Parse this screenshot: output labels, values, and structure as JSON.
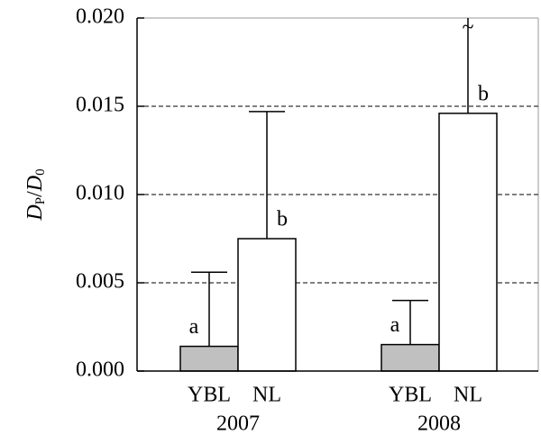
{
  "chart_data": {
    "type": "bar",
    "ylabel": [
      "D",
      "P",
      "/",
      "D",
      "0"
    ],
    "categories": [
      "2007",
      "2008"
    ],
    "series": [
      {
        "name": "YBL",
        "color": "#c0c0c0",
        "values": [
          0.0014,
          0.0015
        ],
        "errors": [
          0.0042,
          0.0025
        ],
        "letters": [
          "a",
          "a"
        ],
        "break_marks": [
          null,
          null
        ]
      },
      {
        "name": "NL",
        "color": "#ffffff",
        "values": [
          0.0075,
          0.0146
        ],
        "errors": [
          0.0072,
          0.0054
        ],
        "letters": [
          "b",
          "b"
        ],
        "break_marks": [
          null,
          "~"
        ]
      }
    ],
    "ylim": [
      0,
      0.02
    ],
    "yticks": [
      {
        "value": 0,
        "label": "0.000"
      },
      {
        "value": 0.005,
        "label": "0.005"
      },
      {
        "value": 0.01,
        "label": "0.010"
      },
      {
        "value": 0.015,
        "label": "0.015"
      },
      {
        "value": 0.02,
        "label": "0.020"
      }
    ],
    "grid": true
  }
}
